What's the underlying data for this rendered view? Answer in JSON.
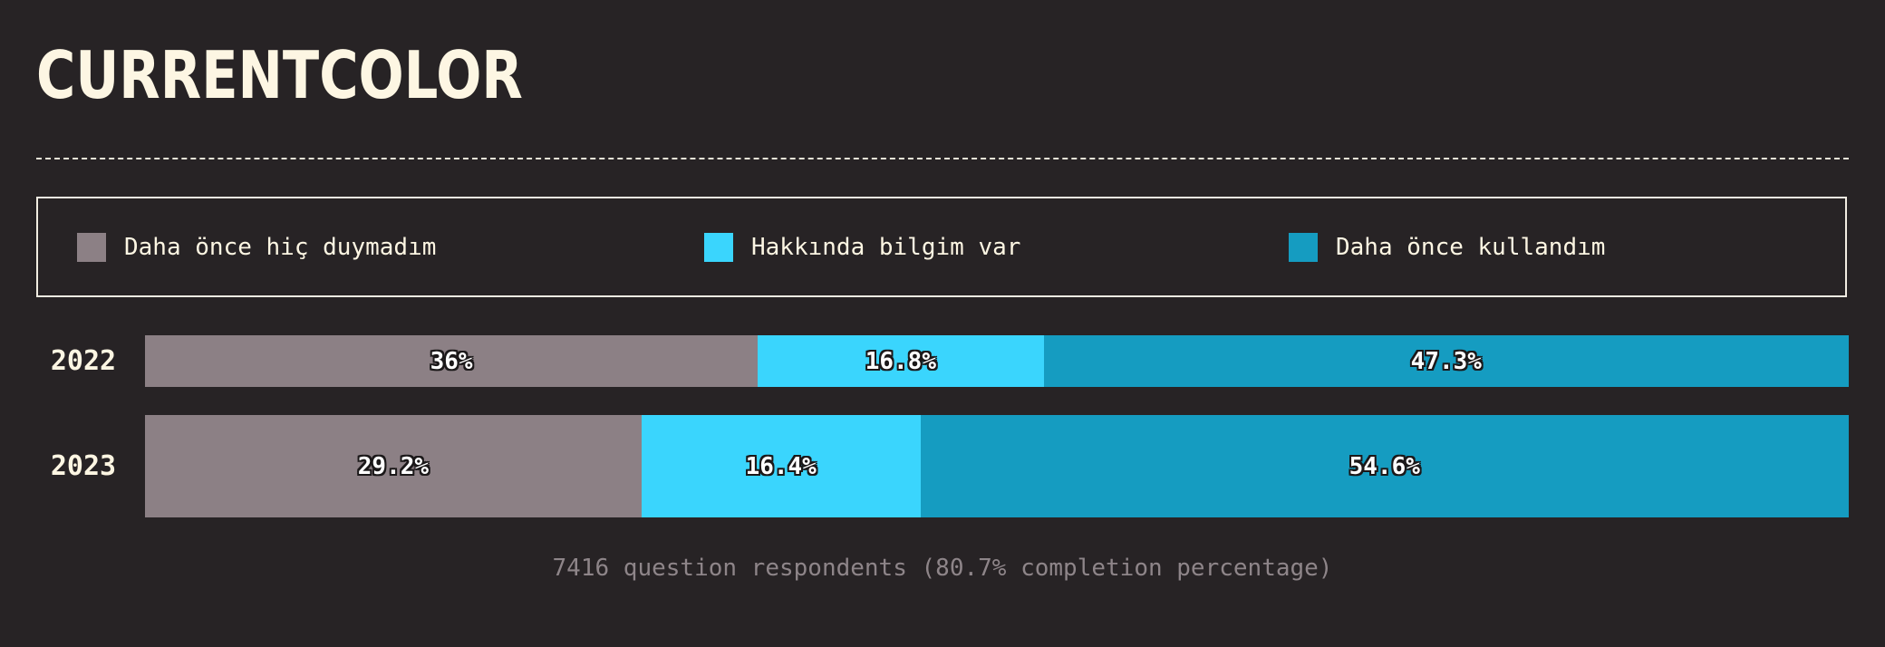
{
  "title": "CURRENTCOLOR",
  "footnote": "7416 question respondents (80.7% completion percentage)",
  "chart_data": {
    "type": "bar",
    "orientation": "horizontal",
    "stacked": true,
    "normalized": true,
    "categories": [
      "2022",
      "2023"
    ],
    "series": [
      {
        "name": "Daha önce hiç duymadım",
        "color": "#8c8085",
        "values": [
          36,
          29.2
        ]
      },
      {
        "name": "Hakkında bilgim var",
        "color": "#3ad5fd",
        "values": [
          16.8,
          16.4
        ]
      },
      {
        "name": "Daha önce kullandım",
        "color": "#159cc1",
        "values": [
          47.3,
          54.6
        ]
      }
    ],
    "data_labels": [
      [
        "36%",
        "16.8%",
        "47.3%"
      ],
      [
        "29.2%",
        "16.4%",
        "54.6%"
      ]
    ],
    "xlim": [
      0,
      100
    ],
    "legend_position": "top",
    "grid": false
  }
}
